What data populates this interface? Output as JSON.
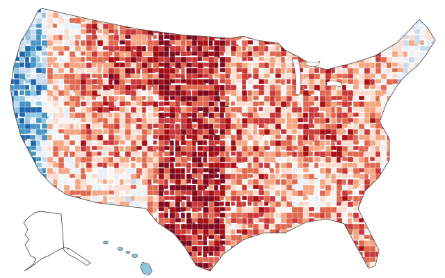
{
  "map": {
    "palette": [
      "#2166ac",
      "#4393c3",
      "#92c5de",
      "#c6dbef",
      "#e8f1f8",
      "#f7f4f2",
      "#fcdcce",
      "#f4a582",
      "#e0684f",
      "#c9383a",
      "#a50f15",
      "#7d0a1e"
    ],
    "border_color": "#555555",
    "background": "#ffffff",
    "insets": [
      "alaska",
      "hawaii"
    ]
  }
}
